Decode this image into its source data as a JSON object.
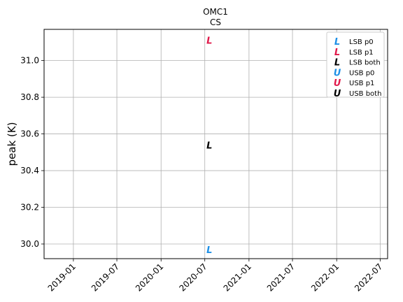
{
  "chart_data": {
    "type": "scatter",
    "title": "OMC1",
    "subtitle": "CS",
    "xlabel": "",
    "ylabel": "peak (K)",
    "x_ticks": [
      "2019-01",
      "2019-07",
      "2020-01",
      "2020-07",
      "2021-01",
      "2021-07",
      "2022-01",
      "2022-07"
    ],
    "xlim": [
      "2018-09-01",
      "2022-08-01"
    ],
    "y_ticks": [
      30.0,
      30.2,
      30.4,
      30.6,
      30.8,
      31.0
    ],
    "ylim": [
      29.92,
      31.17
    ],
    "grid": true,
    "legend_position": "top-right",
    "series": [
      {
        "name": "LSB p0",
        "marker": "L",
        "color": "#1e90e6",
        "points": [
          {
            "x": "2020-07-20",
            "y": 29.97
          }
        ]
      },
      {
        "name": "LSB p1",
        "marker": "L",
        "color": "#e0194a",
        "points": [
          {
            "x": "2020-07-20",
            "y": 31.11
          }
        ]
      },
      {
        "name": "LSB both",
        "marker": "L",
        "color": "#000000",
        "points": [
          {
            "x": "2020-07-20",
            "y": 30.54
          }
        ]
      },
      {
        "name": "USB p0",
        "marker": "U",
        "color": "#1e90e6",
        "points": []
      },
      {
        "name": "USB p1",
        "marker": "U",
        "color": "#e0194a",
        "points": []
      },
      {
        "name": "USB both",
        "marker": "U",
        "color": "#000000",
        "points": []
      }
    ]
  }
}
